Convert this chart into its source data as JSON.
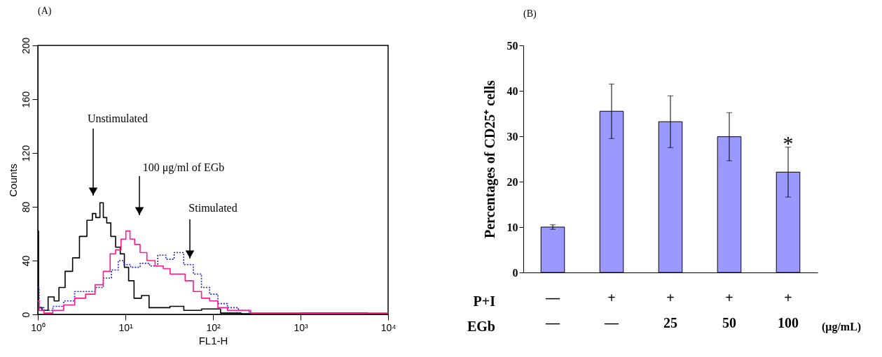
{
  "chart_data": [
    {
      "type": "step",
      "title": "(A)",
      "xlabel": "FL1-H",
      "ylabel": "Counts",
      "log": "x",
      "xlim": [
        1,
        10000
      ],
      "xticks": [
        {
          "value": 1,
          "label": "10⁰"
        },
        {
          "value": 10,
          "label": "10¹"
        },
        {
          "value": 100,
          "label": "10²"
        },
        {
          "value": 1000,
          "label": "10³"
        },
        {
          "value": 10000,
          "label": "10⁴"
        }
      ],
      "ylim": [
        0,
        200
      ],
      "yticks": [
        0,
        40,
        80,
        120,
        160,
        200
      ],
      "grid": false,
      "legend": false,
      "series": [
        {
          "color": "#000000",
          "line_style": "solid",
          "x": [
            1,
            1.04,
            1.2,
            1.43,
            1.65,
            1.84,
            2.28,
            2.73,
            3.27,
            4.05,
            4.35,
            4.85,
            5.4,
            5.8,
            6.46,
            7.2,
            8.3,
            9.2,
            10.3,
            11.5,
            13.7,
            17,
            20.4,
            26,
            40,
            54,
            102,
            146,
            300,
            3430,
            10000
          ],
          "values": [
            62,
            5,
            3,
            13,
            10,
            20,
            32,
            42,
            58,
            70,
            75,
            72,
            83,
            72,
            68,
            58,
            50,
            45,
            35,
            25,
            12,
            14,
            5,
            5,
            6,
            3,
            4,
            1,
            0.5,
            1,
            0
          ]
        },
        {
          "color": "#2222cc",
          "line_style": "dotted",
          "x": [
            1,
            1.07,
            1.29,
            1.71,
            2.28,
            3.04,
            4.05,
            5.02,
            6.23,
            7.72,
            8.9,
            10.3,
            12.8,
            17,
            21.1,
            26,
            32.4,
            40,
            53.6,
            66.4,
            82.4,
            102,
            127,
            169,
            225,
            300,
            10000
          ],
          "values": [
            20,
            5,
            3,
            6,
            10,
            17,
            17,
            20,
            27,
            33,
            40,
            37,
            35,
            38,
            36,
            44,
            41,
            46,
            37,
            30,
            20,
            15,
            8,
            5,
            3,
            1,
            0
          ]
        },
        {
          "color": "#ff1a8c",
          "line_style": "solid",
          "x": [
            1,
            1.07,
            1.29,
            1.71,
            2.28,
            3.04,
            4.05,
            5.02,
            6.23,
            7.2,
            8.3,
            9.58,
            10.7,
            11.9,
            13.7,
            15.8,
            19.6,
            24.3,
            30.2,
            34.8,
            43.2,
            53.6,
            66.4,
            82.4,
            102,
            127,
            169,
            242,
            300,
            614,
            10000
          ],
          "values": [
            10,
            3,
            1,
            3,
            7,
            12,
            15,
            22,
            32,
            45,
            48,
            56,
            62,
            56,
            52,
            46,
            40,
            36,
            34,
            30,
            30,
            25,
            17,
            12,
            10,
            5,
            3,
            3,
            1,
            1,
            1
          ]
        }
      ],
      "annotations": [
        "Unstimulated",
        "100 μg/ml of EGb",
        "Stimulated"
      ]
    },
    {
      "type": "bar",
      "title": "(B)",
      "ylabel": "Percentages of CD25⁺ cells",
      "categories": [
        "—\n—",
        "+\n—",
        "+\n25",
        "+\n50",
        "+\n100"
      ],
      "values": [
        10,
        35.5,
        33.2,
        29.9,
        22.1
      ],
      "errors": [
        0.5,
        6,
        5.7,
        5.3,
        5.5
      ],
      "color": "#9999ff",
      "ylim": [
        0,
        50
      ],
      "yticks": [
        0,
        10,
        20,
        30,
        40,
        50
      ],
      "grid": false,
      "legend": false,
      "annotations": [
        "P+I",
        "EGb",
        "(μg/mL)",
        {
          "text": "*",
          "x": "+\n100",
          "y": 27.6
        }
      ]
    }
  ]
}
